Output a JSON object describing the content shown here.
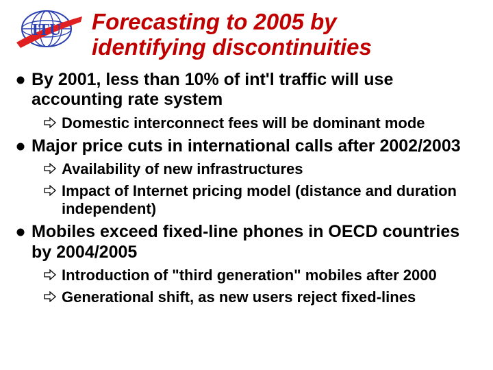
{
  "logo": {
    "text": "ITU",
    "globe_stroke": "#2a3fb0",
    "globe_fill": "#ffffff",
    "text_color": "#2a3fb0",
    "text_fontsize": 24,
    "flash_color": "#e02020"
  },
  "title": {
    "lines": [
      "Forecasting to 2005 by",
      "identifying discontinuities"
    ],
    "color": "#c00000",
    "fontsize": 33
  },
  "body": {
    "bullet_color": "#000000",
    "arrow_fill": "#ffffff",
    "arrow_stroke": "#000000",
    "l1_fontsize": 25,
    "l2_fontsize": 22,
    "items": [
      {
        "text": "By 2001, less than 10% of int'l traffic will use accounting rate system",
        "sub": [
          "Domestic interconnect fees will be dominant mode"
        ]
      },
      {
        "text": "Major price cuts in international calls after 2002/2003",
        "sub": [
          "Availability of new infrastructures",
          "Impact of Internet pricing model (distance and duration independent)"
        ]
      },
      {
        "text": "Mobiles exceed fixed-line phones in OECD countries by 2004/2005",
        "sub": [
          "Introduction of \"third generation\" mobiles after 2000",
          "Generational shift, as new users reject fixed-lines"
        ]
      }
    ]
  }
}
